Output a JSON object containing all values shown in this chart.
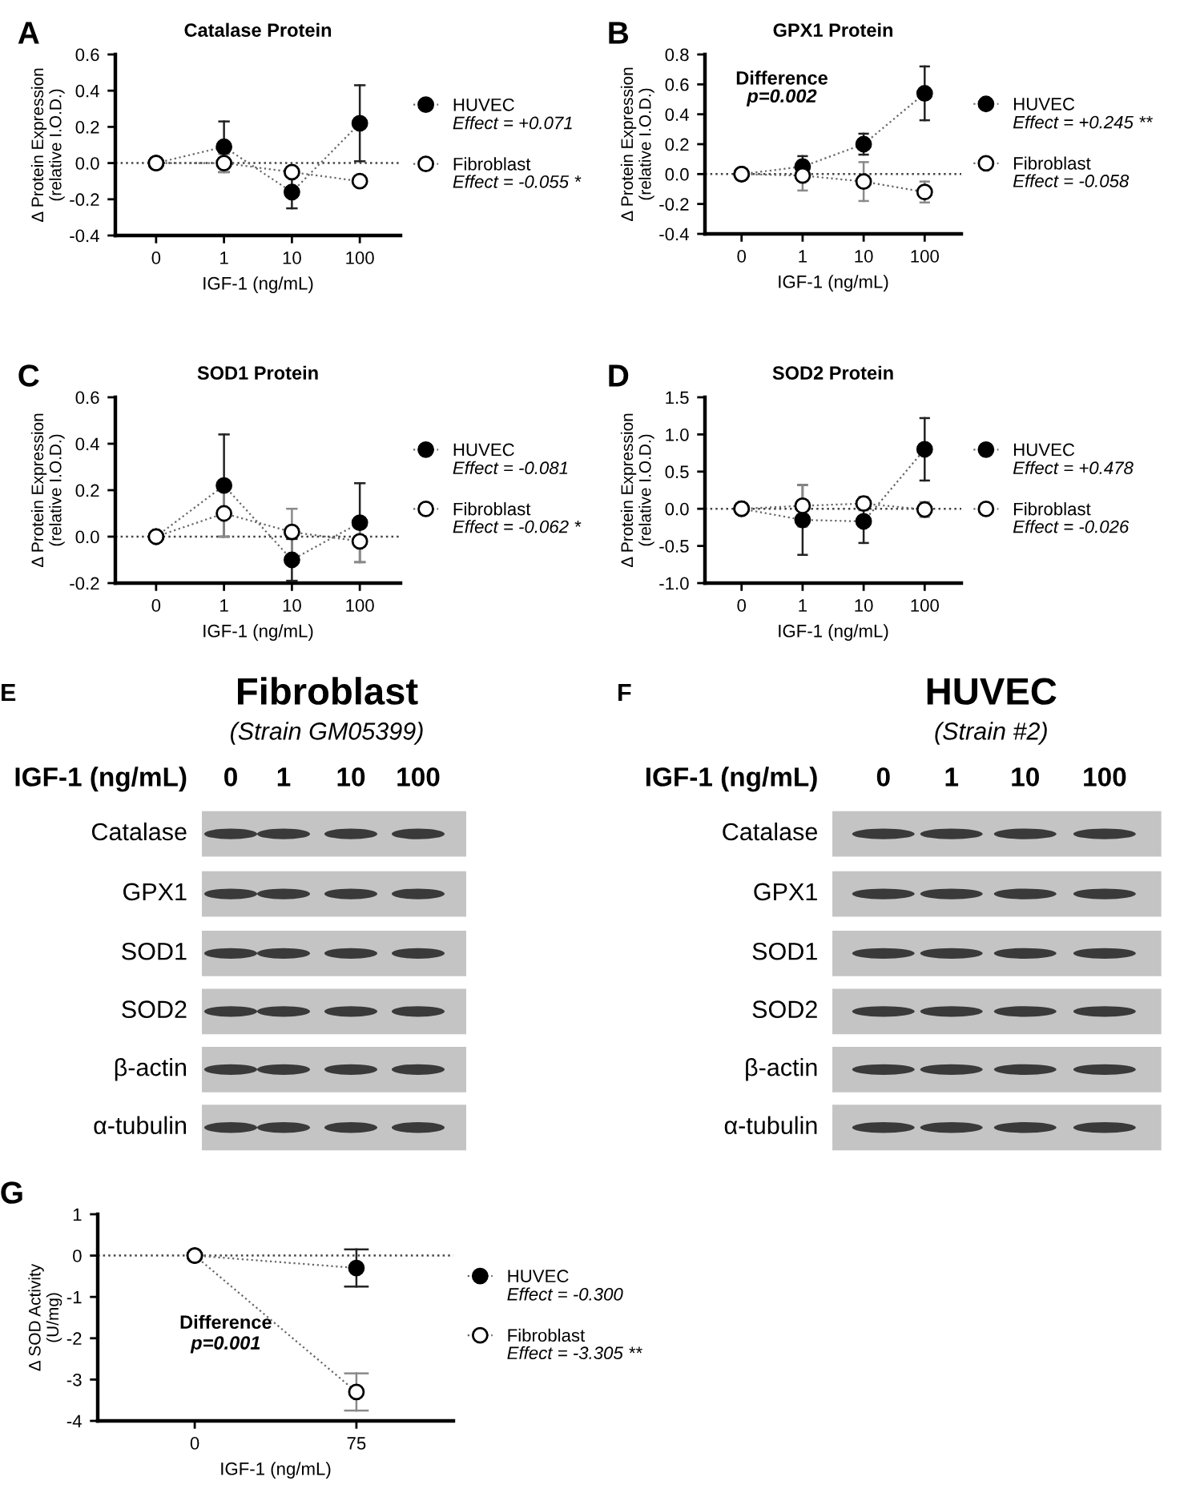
{
  "chart_data": [
    {
      "type": "line",
      "title": "Catalase Protein",
      "xlabel": "IGF-1 (ng/mL)",
      "ylabel": "Δ Protein Expression\n(relative I.O.D.)",
      "categories": [
        "0",
        "1",
        "10",
        "100"
      ],
      "ylim": [
        -0.4,
        0.6
      ],
      "yticks": [
        -0.4,
        -0.2,
        {
          "value": 0,
          "label": "0.0"
        },
        0.2,
        0.4,
        0.6
      ],
      "marker": "circle",
      "line_style": "dotted",
      "legend": "right",
      "ref_lines": [
        {
          "axis": "y",
          "value": 0,
          "line_style": "dotted"
        }
      ],
      "annotations": [
        "A",
        "Effect = +0.071",
        "Effect = -0.055 *"
      ],
      "series": [
        {
          "name": "HUVEC",
          "color": "#000000",
          "values": [
            0,
            0.09,
            -0.16,
            0.22
          ],
          "errors": [
            null,
            0.14,
            0.09,
            0.21
          ]
        },
        {
          "name": "Fibroblast",
          "color": "#ffffff",
          "values": [
            0,
            0.0,
            -0.05,
            -0.1
          ],
          "errors": [
            null,
            0.05,
            0.02,
            0.02
          ]
        }
      ]
    },
    {
      "type": "line",
      "title": "GPX1 Protein",
      "xlabel": "IGF-1 (ng/mL)",
      "ylabel": "Δ Protein Expression\n(relative I.O.D.)",
      "categories": [
        "0",
        "1",
        "10",
        "100"
      ],
      "ylim": [
        -0.4,
        0.8
      ],
      "yticks": [
        -0.4,
        -0.2,
        {
          "value": 0,
          "label": "0.0"
        },
        0.2,
        0.4,
        0.6,
        0.8
      ],
      "marker": "circle",
      "line_style": "dotted",
      "legend": "right",
      "ref_lines": [
        {
          "axis": "y",
          "value": 0,
          "line_style": "dotted"
        }
      ],
      "annotations": [
        "B",
        "Effect = +0.245 **",
        "Effect = -0.058",
        "Difference",
        "p=0.002"
      ],
      "series": [
        {
          "name": "HUVEC",
          "color": "#000000",
          "values": [
            0,
            0.05,
            0.2,
            0.54
          ],
          "errors": [
            null,
            0.07,
            0.07,
            0.18
          ]
        },
        {
          "name": "Fibroblast",
          "color": "#ffffff",
          "values": [
            0,
            -0.01,
            -0.05,
            -0.12
          ],
          "errors": [
            null,
            0.1,
            0.13,
            0.07
          ]
        }
      ]
    },
    {
      "type": "line",
      "title": "SOD1 Protein",
      "xlabel": "IGF-1 (ng/mL)",
      "ylabel": "Δ Protein Expression\n(relative I.O.D.)",
      "categories": [
        "0",
        "1",
        "10",
        "100"
      ],
      "ylim": [
        -0.2,
        0.6
      ],
      "yticks": [
        -0.2,
        {
          "value": 0,
          "label": "0.0"
        },
        0.2,
        0.4,
        0.6
      ],
      "marker": "circle",
      "line_style": "dotted",
      "legend": "right",
      "ref_lines": [
        {
          "axis": "y",
          "value": 0,
          "line_style": "dotted"
        }
      ],
      "annotations": [
        "C",
        "Effect = -0.081",
        "Effect = -0.062 *"
      ],
      "series": [
        {
          "name": "HUVEC",
          "color": "#000000",
          "values": [
            0,
            0.22,
            -0.1,
            0.06
          ],
          "errors": [
            null,
            0.22,
            0.09,
            0.17
          ]
        },
        {
          "name": "Fibroblast",
          "color": "#ffffff",
          "values": [
            0,
            0.1,
            0.02,
            -0.02
          ],
          "errors": [
            null,
            0.1,
            0.1,
            0.09
          ]
        }
      ]
    },
    {
      "type": "line",
      "title": "SOD2 Protein",
      "xlabel": "IGF-1 (ng/mL)",
      "ylabel": "Δ Protein Expression\n(relative I.O.D.)",
      "categories": [
        "0",
        "1",
        "10",
        "100"
      ],
      "ylim": [
        -1.0,
        1.5
      ],
      "yticks": [
        {
          "value": -1,
          "label": "-1.0"
        },
        -0.5,
        {
          "value": 0,
          "label": "0.0"
        },
        0.5,
        {
          "value": 1,
          "label": "1.0"
        },
        1.5
      ],
      "marker": "circle",
      "line_style": "dotted",
      "legend": "right",
      "ref_lines": [
        {
          "axis": "y",
          "value": 0,
          "line_style": "dotted"
        }
      ],
      "annotations": [
        "D",
        "Effect = +0.478",
        "Effect = -0.026"
      ],
      "series": [
        {
          "name": "HUVEC",
          "color": "#000000",
          "values": [
            0,
            -0.15,
            -0.17,
            0.8
          ],
          "errors": [
            null,
            0.47,
            0.29,
            0.42
          ]
        },
        {
          "name": "Fibroblast",
          "color": "#ffffff",
          "values": [
            0,
            0.04,
            0.07,
            -0.01
          ],
          "errors": [
            null,
            0.28,
            0.09,
            0.1
          ]
        }
      ]
    },
    {
      "type": "other",
      "title": "Fibroblast",
      "subtitle": "(Strain GM05399)",
      "xlabel": "IGF-1 (ng/mL)",
      "categories": [
        "0",
        "1",
        "10",
        "100"
      ],
      "y_categories": [
        "Catalase",
        "GPX1",
        "SOD1",
        "SOD2",
        "β-actin",
        "α-tubulin"
      ],
      "annotations": [
        "E"
      ]
    },
    {
      "type": "other",
      "title": "HUVEC",
      "subtitle": "(Strain #2)",
      "xlabel": "IGF-1 (ng/mL)",
      "categories": [
        "0",
        "1",
        "10",
        "100"
      ],
      "y_categories": [
        "Catalase",
        "GPX1",
        "SOD1",
        "SOD2",
        "β-actin",
        "α-tubulin"
      ],
      "annotations": [
        "F"
      ]
    },
    {
      "type": "line",
      "xlabel": "IGF-1 (ng/mL)",
      "ylabel": "Δ SOD Activity\n(U/mg)",
      "categories": [
        "0",
        "75"
      ],
      "ylim": [
        -4,
        1
      ],
      "yticks": [
        -4,
        -3,
        -2,
        -1,
        0,
        1
      ],
      "marker": "circle",
      "line_style": "dotted",
      "legend": "right",
      "ref_lines": [
        {
          "axis": "y",
          "value": 0,
          "line_style": "dotted"
        }
      ],
      "annotations": [
        "G",
        "Effect = -0.300",
        "Effect = -3.305 **",
        "Difference",
        "p=0.001"
      ],
      "series": [
        {
          "name": "HUVEC",
          "color": "#000000",
          "values": [
            0,
            -0.3
          ],
          "errors": [
            null,
            0.45
          ]
        },
        {
          "name": "Fibroblast",
          "color": "#ffffff",
          "values": [
            0,
            -3.3
          ],
          "errors": [
            null,
            0.45
          ]
        }
      ]
    }
  ]
}
